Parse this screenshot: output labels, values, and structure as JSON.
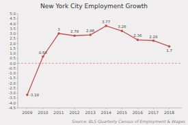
{
  "chart_data": {
    "type": "line",
    "title": "New York City Employment Growth",
    "annotations": [
      "Source: BLS Quarterly Census of Employment & Wages"
    ],
    "x": [
      2009,
      2010,
      2011,
      2012,
      2013,
      2014,
      2015,
      2016,
      2017,
      2018
    ],
    "values": [
      -3.18,
      0.68,
      3.0,
      2.78,
      2.86,
      3.77,
      3.26,
      2.36,
      2.28,
      1.7
    ],
    "color": "#c0504d",
    "marker": "circle",
    "data_labels": true,
    "grid": false,
    "xlim": [
      2008.4,
      2018.8
    ],
    "xticks": [
      2009,
      2010,
      2011,
      2012,
      2013,
      2014,
      2015,
      2016,
      2017,
      2018
    ],
    "ylim": [
      -4.5,
      5.0
    ],
    "yticks": [
      -4.5,
      {
        "value": -4.0,
        "label": "-4.0"
      },
      -3.5,
      {
        "value": -3.0,
        "label": "-3.0"
      },
      -2.5,
      {
        "value": -2.0,
        "label": "-2.0"
      },
      -1.5,
      {
        "value": -1.0,
        "label": "-1.0"
      },
      -0.5,
      {
        "value": 0.0,
        "label": "0.0"
      },
      0.5,
      {
        "value": 1.0,
        "label": "1.0"
      },
      1.5,
      {
        "value": 2.0,
        "label": "2.0"
      },
      2.5,
      {
        "value": 3.0,
        "label": "3.0"
      },
      3.5,
      {
        "value": 4.0,
        "label": "4.0"
      },
      4.5,
      {
        "value": 5.0,
        "label": "5.0"
      }
    ]
  }
}
